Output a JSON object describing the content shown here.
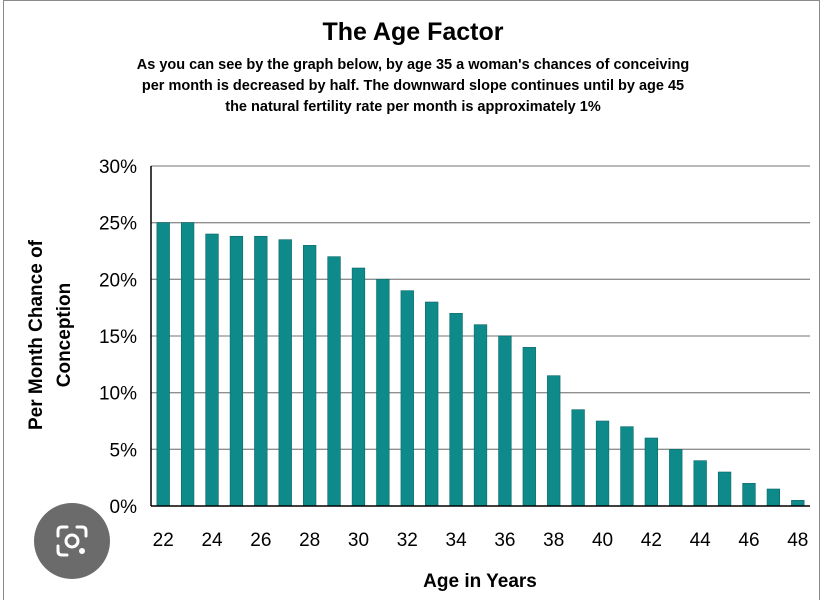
{
  "chart_data": {
    "type": "bar",
    "title": "The Age Factor",
    "subtitle_lines": [
      "As you can see by the graph below, by age 35 a woman's chances of conceiving",
      "per month is decreased by half.  The downward slope continues until by age 45",
      "the natural fertility rate per month is approximately 1%"
    ],
    "xlabel": "Age in Years",
    "ylabel_lines": [
      "Per Month Chance of",
      "Conception"
    ],
    "categories": [
      22,
      23,
      24,
      25,
      26,
      27,
      28,
      29,
      30,
      31,
      32,
      33,
      34,
      35,
      36,
      37,
      38,
      39,
      40,
      41,
      42,
      43,
      44,
      45,
      46,
      47,
      48
    ],
    "x_tick_labels": [
      "22",
      "24",
      "26",
      "28",
      "30",
      "32",
      "34",
      "36",
      "38",
      "40",
      "42",
      "44",
      "46",
      "48"
    ],
    "values": [
      25,
      25,
      24,
      23.8,
      23.8,
      23.5,
      23,
      22,
      21,
      20,
      19,
      18,
      17,
      16,
      15,
      14,
      11.5,
      8.5,
      7.5,
      7,
      6,
      5,
      4,
      3,
      2,
      1.5,
      0.5
    ],
    "y_tick_labels": [
      "0%",
      "5%",
      "10%",
      "15%",
      "20%",
      "25%",
      "30%"
    ],
    "ylim": [
      0,
      30
    ],
    "ystep": 5,
    "grid": true,
    "bar_color": "#0e8a8a"
  },
  "overlay": {
    "icon": "lens-search-icon"
  }
}
